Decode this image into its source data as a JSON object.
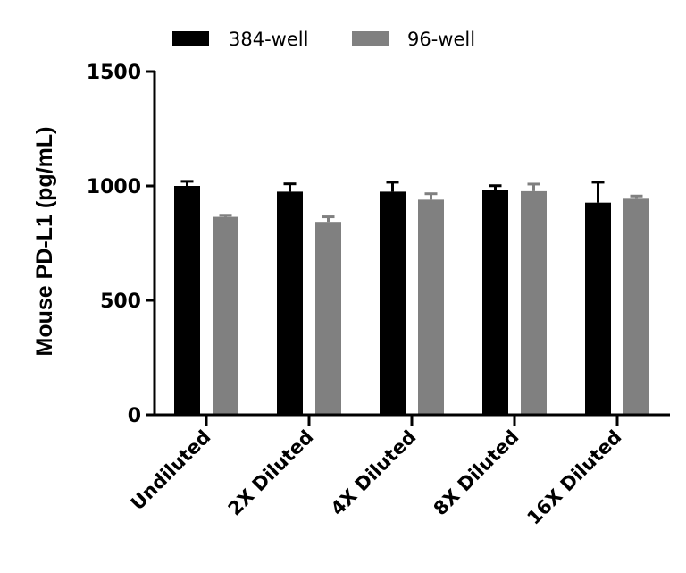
{
  "chart_data": {
    "type": "bar",
    "title": "",
    "xlabel": "",
    "ylabel": "Mouse PD-L1 (pg/mL)",
    "ylim": [
      0,
      1500
    ],
    "yticks": [
      0,
      500,
      1000,
      1500
    ],
    "grid": false,
    "legend_position": "top",
    "categories": [
      "Undiluted",
      "2X Diluted",
      "4X Diluted",
      "8X Diluted",
      "16X Diluted"
    ],
    "series": [
      {
        "name": "384-well",
        "color": "#000000",
        "values": [
          1000,
          975,
          975,
          982,
          927
        ],
        "error": [
          20,
          34,
          41,
          19,
          89
        ]
      },
      {
        "name": "96-well",
        "color": "#808080",
        "values": [
          865,
          843,
          940,
          977,
          944
        ],
        "error": [
          7,
          22,
          26,
          31,
          12
        ]
      }
    ]
  },
  "legend": {
    "items": [
      {
        "label": "384-well",
        "color": "#000000"
      },
      {
        "label": "96-well",
        "color": "#808080"
      }
    ]
  }
}
